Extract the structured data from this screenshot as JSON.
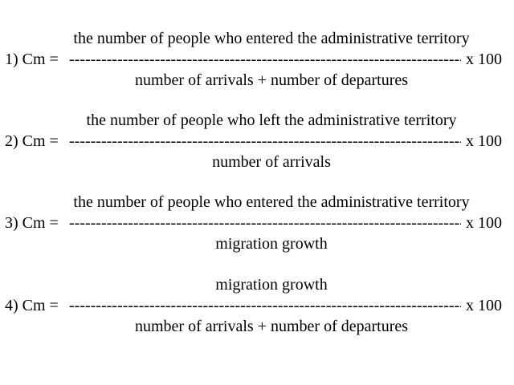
{
  "formulas": [
    {
      "label": "1) Cm =",
      "numerator": "the number of people who entered the administrative territory",
      "denominator": "number of arrivals + number of departures",
      "multiplier": "x 100"
    },
    {
      "label": "2) Cm =",
      "numerator": "the number of people who left the administrative territory",
      "denominator": "number of arrivals",
      "multiplier": "x 100"
    },
    {
      "label": "3) Cm =",
      "numerator": "the number of people who entered the administrative territory",
      "denominator": "migration growth",
      "multiplier": "x 100"
    },
    {
      "label": "4) Cm =",
      "numerator": "migration growth",
      "denominator": "number of arrivals + number of departures",
      "multiplier": "x 100"
    }
  ]
}
